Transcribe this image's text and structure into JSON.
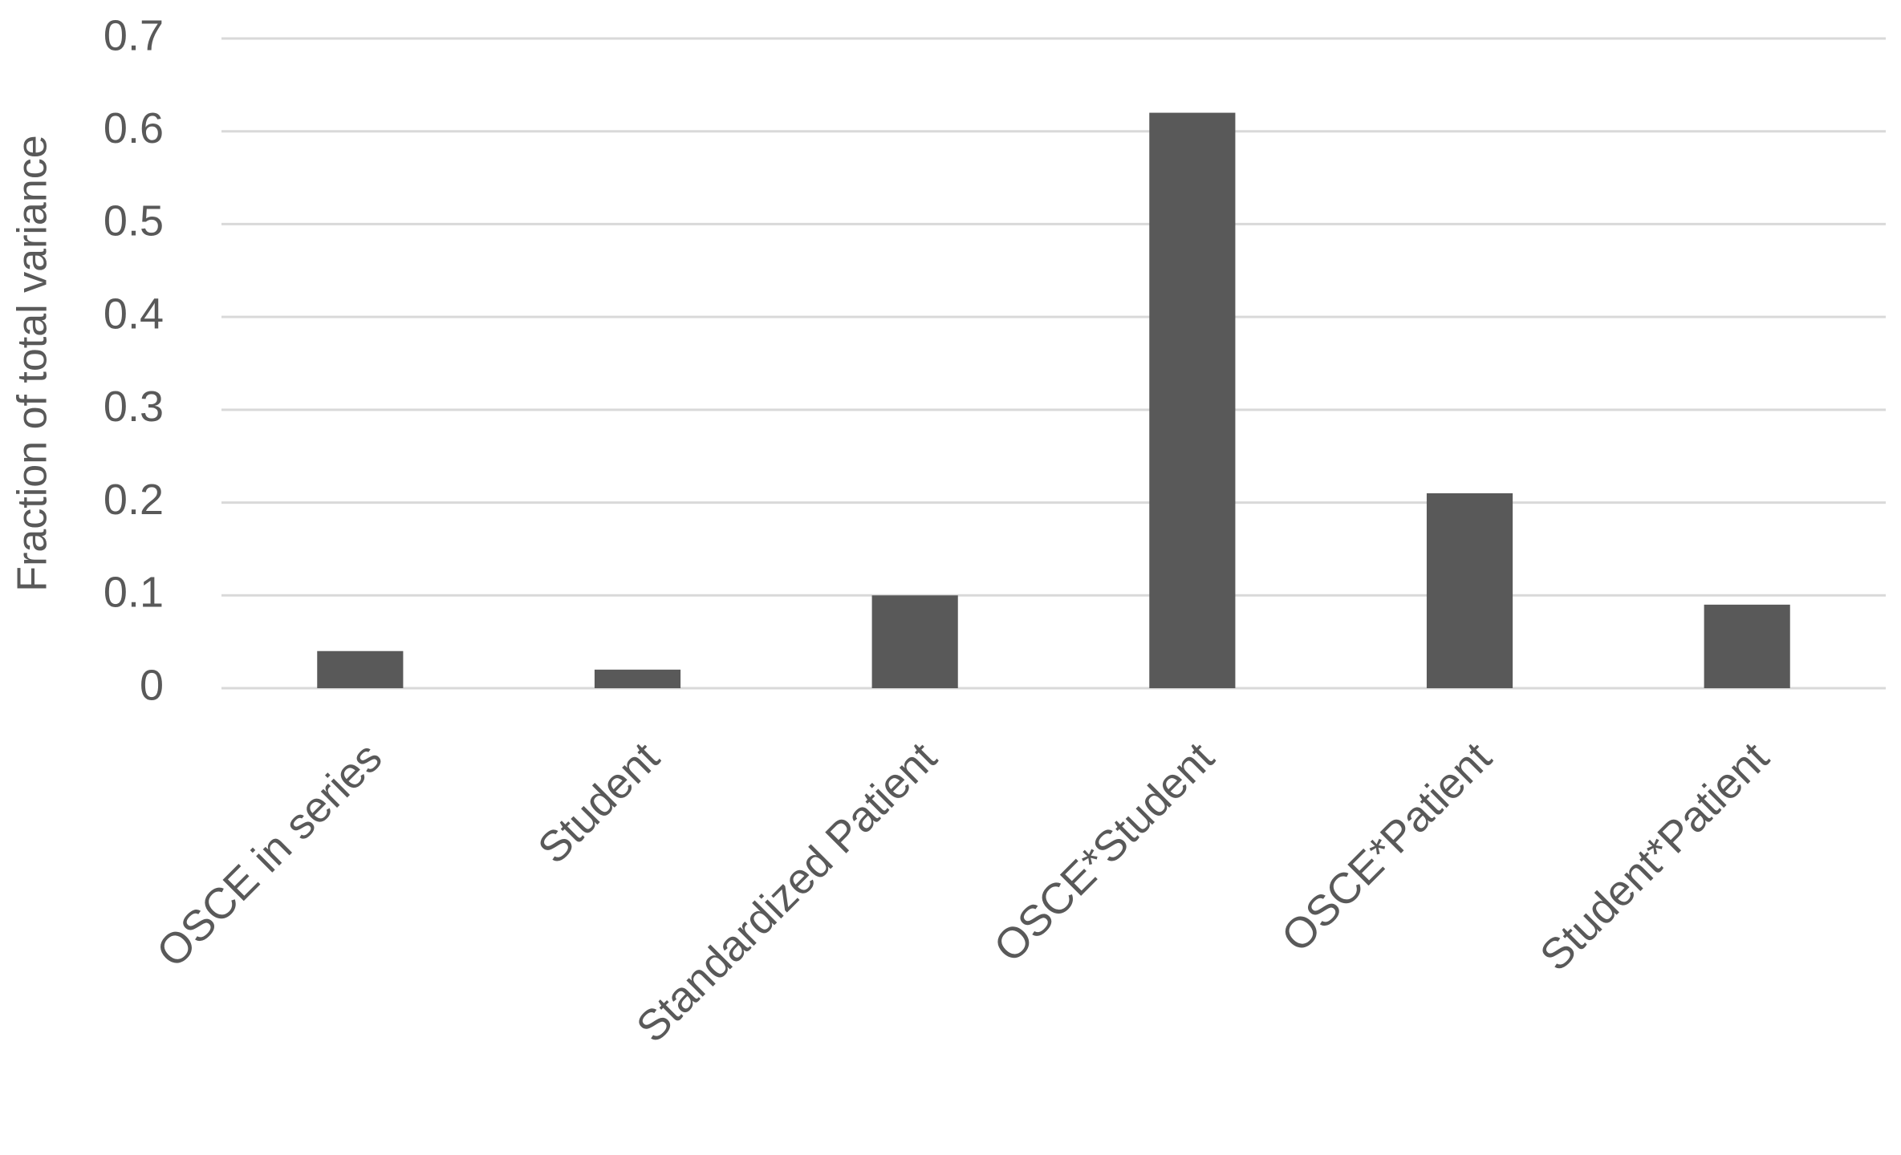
{
  "chart_data": {
    "type": "bar",
    "y_label": "Fraction of total variance",
    "categories": [
      "OSCE in series",
      "Student",
      "Standardized Patient",
      "OSCE*Student",
      "OSCE*Patient",
      "Student*Patient"
    ],
    "values": [
      0.04,
      0.02,
      0.1,
      0.62,
      0.21,
      0.09
    ],
    "color": "#595959",
    "ylim": [
      0,
      0.7
    ],
    "yticks": [
      0,
      0.1,
      0.2,
      0.3,
      0.4,
      0.5,
      0.6,
      0.7
    ],
    "grid": true
  }
}
